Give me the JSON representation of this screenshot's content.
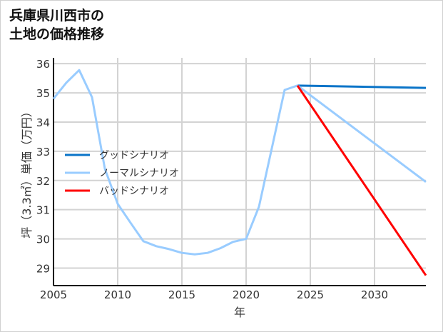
{
  "chart_data": {
    "type": "line",
    "title": [
      "兵庫県川西市の",
      "土地の価格推移"
    ],
    "xlabel": "年",
    "ylabel": "坪（3.3㎡）単価（万円）",
    "xlim": [
      2005,
      2034
    ],
    "ylim": [
      28.4,
      36.2
    ],
    "xticks": [
      2005,
      2010,
      2015,
      2020,
      2025,
      2030
    ],
    "yticks": [
      29,
      30,
      31,
      32,
      33,
      34,
      35,
      36
    ],
    "grid": true,
    "legend_position": "left-middle",
    "series": [
      {
        "name": "グッドシナリオ",
        "color": "#0a74c8",
        "x": [
          2024,
          2034
        ],
        "y": [
          35.25,
          35.17
        ]
      },
      {
        "name": "ノーマルシナリオ",
        "color": "#99ccff",
        "x": [
          2005,
          2006,
          2007,
          2008,
          2009,
          2010,
          2011,
          2012,
          2013,
          2014,
          2015,
          2016,
          2017,
          2018,
          2019,
          2020,
          2021,
          2022,
          2023,
          2024,
          2034
        ],
        "y": [
          34.8,
          35.35,
          35.78,
          34.85,
          32.4,
          31.2,
          30.55,
          29.92,
          29.75,
          29.65,
          29.52,
          29.47,
          29.52,
          29.68,
          29.9,
          30.0,
          31.1,
          33.1,
          35.1,
          35.25,
          31.95
        ]
      },
      {
        "name": "バッドシナリオ",
        "color": "#ff0000",
        "x": [
          2024,
          2034
        ],
        "y": [
          35.25,
          28.75
        ]
      }
    ]
  }
}
